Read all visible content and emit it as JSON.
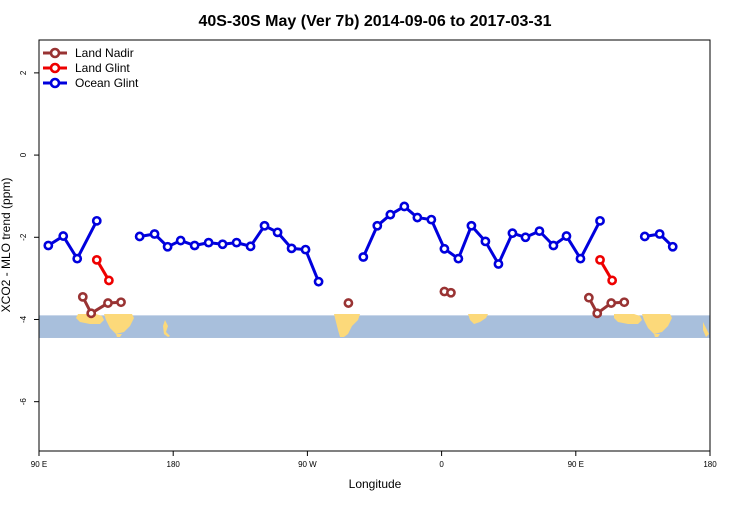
{
  "chart_data": {
    "type": "line",
    "title": "40S-30S May (Ver 7b)   2014-09-06 to 2017-03-31",
    "xlabel": "Longitude",
    "ylabel": "XCO2 - MLO trend (ppm)",
    "xlim": [
      90,
      450
    ],
    "ylim": [
      -7.2,
      2.8
    ],
    "x_ticks": [
      {
        "value": 90,
        "label": "90 E"
      },
      {
        "value": 180,
        "label": "180"
      },
      {
        "value": 270,
        "label": "90 W"
      },
      {
        "value": 360,
        "label": "0"
      },
      {
        "value": 450,
        "label": "90 E"
      },
      {
        "value": 540,
        "label": "180"
      }
    ],
    "x_tick_positions": [
      90,
      162,
      234,
      306,
      378,
      450
    ],
    "y_ticks": [
      {
        "value": 2,
        "label": "2"
      },
      {
        "value": 0,
        "label": "0"
      },
      {
        "value": -2,
        "label": "-2"
      },
      {
        "value": -4,
        "label": "-4"
      },
      {
        "value": -6,
        "label": "-6"
      }
    ],
    "map_band": {
      "y_top": -3.9,
      "y_bottom": -4.45,
      "ocean_color": "#a8bfdc",
      "land_color": "#fcd97a"
    },
    "series": [
      {
        "name": "Land Nadir",
        "color": "#993333",
        "segments": [
          [
            [
              113.5,
              -3.45
            ],
            [
              118,
              -3.85
            ],
            [
              127,
              -3.6
            ],
            [
              134,
              -3.58
            ]
          ],
          [
            [
              256,
              -3.6
            ]
          ],
          [
            [
              307.5,
              -3.32
            ],
            [
              311,
              -3.35
            ]
          ],
          [
            [
              385,
              -3.47
            ],
            [
              389.5,
              -3.85
            ],
            [
              397,
              -3.6
            ],
            [
              404,
              -3.58
            ]
          ]
        ]
      },
      {
        "name": "Land Glint",
        "color": "#ee0000",
        "segments": [
          [
            [
              121,
              -2.55
            ],
            [
              127.5,
              -3.05
            ]
          ],
          [
            [
              391,
              -2.55
            ],
            [
              397.5,
              -3.05
            ]
          ]
        ]
      },
      {
        "name": "Ocean Glint",
        "color": "#0000dd",
        "segments": [
          [
            [
              95,
              -2.2
            ],
            [
              103,
              -1.97
            ],
            [
              110.5,
              -2.52
            ],
            [
              121,
              -1.6
            ]
          ],
          [
            [
              144,
              -1.98
            ],
            [
              152,
              -1.92
            ],
            [
              159,
              -2.23
            ],
            [
              166,
              -2.08
            ],
            [
              173.5,
              -2.2
            ],
            [
              181,
              -2.13
            ],
            [
              188.5,
              -2.17
            ],
            [
              196,
              -2.13
            ],
            [
              203.5,
              -2.22
            ],
            [
              211,
              -1.72
            ],
            [
              218,
              -1.88
            ],
            [
              225.5,
              -2.27
            ],
            [
              233,
              -2.3
            ],
            [
              240,
              -3.08
            ]
          ],
          [
            [
              264,
              -2.48
            ],
            [
              271.5,
              -1.72
            ],
            [
              278.5,
              -1.45
            ],
            [
              286,
              -1.25
            ],
            [
              293,
              -1.52
            ],
            [
              300.5,
              -1.57
            ],
            [
              307.5,
              -2.28
            ],
            [
              315,
              -2.52
            ],
            [
              322,
              -1.72
            ],
            [
              329.5,
              -2.1
            ],
            [
              336.5,
              -2.65
            ],
            [
              344,
              -1.9
            ],
            [
              351,
              -2.0
            ],
            [
              358.5,
              -1.85
            ],
            [
              366,
              -2.2
            ],
            [
              373,
              -1.97
            ],
            [
              380.5,
              -2.52
            ],
            [
              391,
              -1.6
            ]
          ],
          [
            [
              415,
              -1.98
            ],
            [
              423,
              -1.92
            ],
            [
              430,
              -2.23
            ]
          ]
        ]
      }
    ],
    "legend": {
      "placement": "top-left",
      "entries": [
        "Land Nadir",
        "Land Glint",
        "Ocean Glint"
      ]
    }
  }
}
